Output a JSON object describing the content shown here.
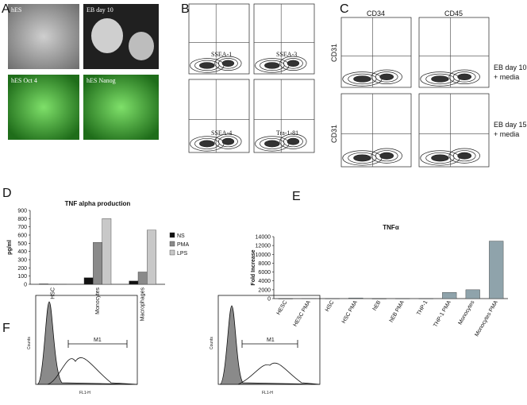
{
  "figure": {
    "panel_labels": [
      "A",
      "B",
      "C",
      "D",
      "E",
      "F"
    ],
    "panel_a": {
      "images": [
        "hES",
        "EB day 10",
        "hES Oct 4",
        "hES Nanog"
      ]
    },
    "panel_b": {
      "markers": [
        "SSEA-1",
        "SSEA-3",
        "SSEA-4",
        "Tra-1-81"
      ]
    },
    "panel_c": {
      "columns": [
        "CD34",
        "CD45"
      ],
      "y_axis": "CD31",
      "rows": [
        [
          "EB day 10",
          "+ media"
        ],
        [
          "EB day 15",
          "+ media"
        ]
      ]
    },
    "panel_f": {
      "gate": "M1",
      "ylabel": "Counts",
      "xlabel": "FL1-H"
    }
  },
  "chart_data": [
    {
      "type": "bar",
      "title": "TNF alpha production",
      "ylabel": "pg/ml",
      "categories": [
        "HSC",
        "Monocytes",
        "Macrophages"
      ],
      "series": [
        {
          "name": "NS",
          "color": "#111111",
          "values": [
            5,
            80,
            40
          ]
        },
        {
          "name": "PMA",
          "color": "#8a8a8a",
          "values": [
            3,
            510,
            150
          ]
        },
        {
          "name": "LPS",
          "color": "#c8c8c8",
          "values": [
            2,
            800,
            660
          ]
        }
      ],
      "ylim": [
        0,
        900
      ],
      "yticks": [
        0,
        100,
        200,
        300,
        400,
        500,
        600,
        700,
        800,
        900
      ]
    },
    {
      "type": "bar",
      "title": "TNFα",
      "ylabel": "Fold Increase",
      "categories": [
        "HESC",
        "HESC PMA",
        "HSC",
        "HSC PMA",
        "hEB",
        "hEB PMA",
        "THP-1",
        "THP-1 PMA",
        "Monocytes",
        "Monocytes PMA"
      ],
      "values": [
        1,
        50,
        20,
        150,
        1,
        20,
        20,
        1400,
        2000,
        13000
      ],
      "color": "#8fa3ab",
      "ylim": [
        0,
        14000
      ],
      "yticks": [
        0,
        2000,
        4000,
        6000,
        8000,
        10000,
        12000,
        14000
      ]
    }
  ]
}
